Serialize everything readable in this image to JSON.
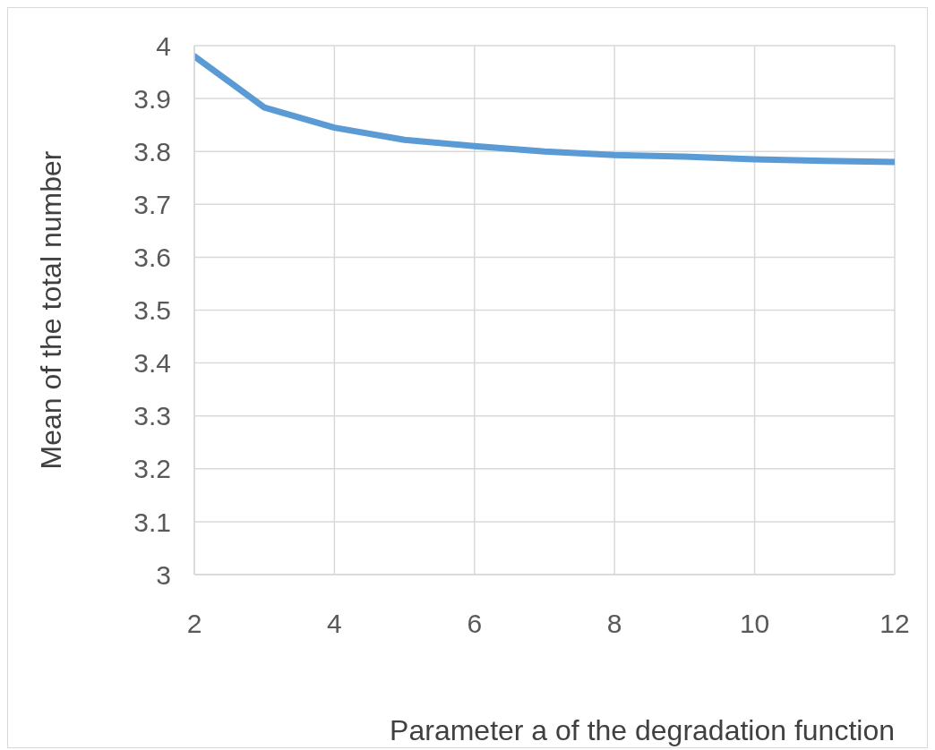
{
  "chart_data": {
    "type": "line",
    "xlabel": "Parameter a of the degradation function",
    "ylabel": "Mean of the total number",
    "x": [
      2,
      3,
      4,
      5,
      6,
      7,
      8,
      9,
      10,
      11,
      12
    ],
    "series": [
      {
        "color": "#5b9bd5",
        "values": [
          3.98,
          3.883,
          3.845,
          3.822,
          3.81,
          3.8,
          3.793,
          3.79,
          3.785,
          3.782,
          3.78
        ]
      }
    ],
    "xlim": [
      2,
      12
    ],
    "xticks": [
      2,
      4,
      6,
      8,
      10,
      12
    ],
    "ylim": [
      3,
      4
    ],
    "yticks": [
      3,
      3.1,
      3.2,
      3.3,
      3.4,
      3.5,
      3.6,
      3.7,
      3.8,
      3.9,
      4
    ],
    "grid": true,
    "marker": "none",
    "line_style": "solid"
  }
}
